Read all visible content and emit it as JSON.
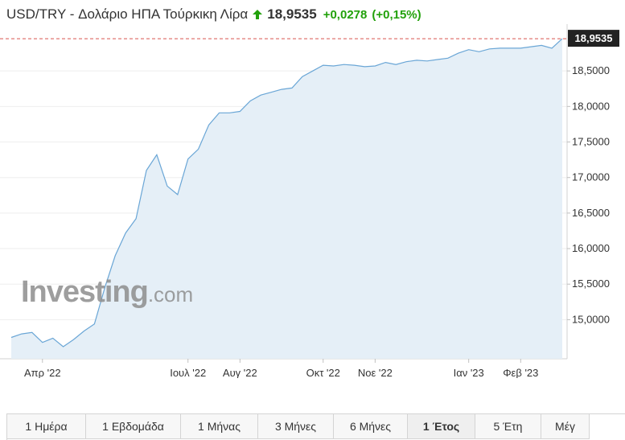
{
  "header": {
    "title": "USD/TRY - Δολάριο ΗΠΑ Τούρκικη Λίρα",
    "price": "18,9535",
    "change": "+0,0278",
    "change_pct": "(+0,15%)",
    "arrow_icon": "up-arrow-icon",
    "positive_color": "#22a10b"
  },
  "watermark": {
    "main": "Investing",
    "suffix": ".com"
  },
  "chart_data": {
    "type": "area",
    "last_value": 18.9535,
    "last_value_label": "18,9535",
    "ylim": [
      14.45,
      19.0
    ],
    "yticks": [
      {
        "v": 15.0,
        "label": "15,0000"
      },
      {
        "v": 15.5,
        "label": "15,5000"
      },
      {
        "v": 16.0,
        "label": "16,0000"
      },
      {
        "v": 16.5,
        "label": "16,5000"
      },
      {
        "v": 17.0,
        "label": "17,0000"
      },
      {
        "v": 17.5,
        "label": "17,5000"
      },
      {
        "v": 18.0,
        "label": "18,0000"
      },
      {
        "v": 18.5,
        "label": "18,5000"
      }
    ],
    "xticks": [
      {
        "i": 3,
        "label": "Απρ '22"
      },
      {
        "i": 17,
        "label": "Ιουλ '22"
      },
      {
        "i": 22,
        "label": "Αυγ '22"
      },
      {
        "i": 30,
        "label": "Οκτ '22"
      },
      {
        "i": 35,
        "label": "Νοε '22"
      },
      {
        "i": 44,
        "label": "Ιαν '23"
      },
      {
        "i": 49,
        "label": "Φεβ '23"
      }
    ],
    "values": [
      14.75,
      14.8,
      14.82,
      14.68,
      14.74,
      14.62,
      14.72,
      14.84,
      14.94,
      15.45,
      15.9,
      16.22,
      16.42,
      17.1,
      17.32,
      16.88,
      16.76,
      17.26,
      17.4,
      17.74,
      17.91,
      17.91,
      17.93,
      18.08,
      18.16,
      18.2,
      18.24,
      18.26,
      18.42,
      18.5,
      18.58,
      18.57,
      18.59,
      18.58,
      18.56,
      18.57,
      18.62,
      18.59,
      18.63,
      18.65,
      18.64,
      18.66,
      18.68,
      18.75,
      18.8,
      18.77,
      18.81,
      18.82,
      18.82,
      18.82,
      18.84,
      18.86,
      18.82,
      18.9535
    ],
    "colors": {
      "line": "#6aa6d6",
      "fill": "#e5eff7",
      "ref_line": "#d9534f",
      "label_bg": "#222222"
    }
  },
  "tabs": [
    {
      "label": "1 Ημέρα",
      "w": 98,
      "active": false
    },
    {
      "label": "1 Εβδομάδα",
      "w": 118,
      "active": false
    },
    {
      "label": "1 Μήνας",
      "w": 96,
      "active": false
    },
    {
      "label": "3 Μήνες",
      "w": 94,
      "active": false
    },
    {
      "label": "6 Μήνες",
      "w": 92,
      "active": false
    },
    {
      "label": "1 Έτος",
      "w": 84,
      "active": true
    },
    {
      "label": "5 Έτη",
      "w": 82,
      "active": false
    },
    {
      "label": "Μέγ",
      "w": 60,
      "active": false
    }
  ]
}
